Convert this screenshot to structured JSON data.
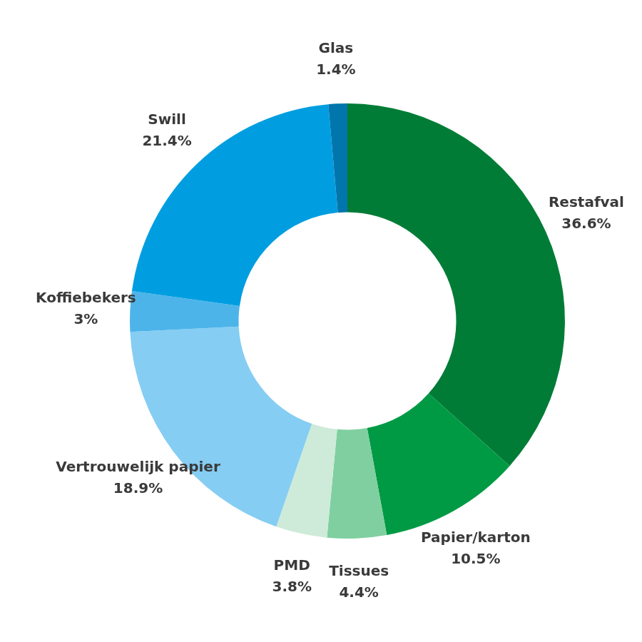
{
  "chart_data": {
    "type": "doughnut",
    "categories": [
      "Restafval",
      "Papier/karton",
      "Tissues",
      "PMD",
      "Vertrouwelijk papier",
      "Koffiebekers",
      "Swill",
      "Glas"
    ],
    "values": [
      36.6,
      10.5,
      4.4,
      3.8,
      18.9,
      3,
      21.4,
      1.4
    ],
    "value_labels": [
      "36.6%",
      "10.5%",
      "4.4%",
      "3.8%",
      "18.9%",
      "3%",
      "21.4%",
      "1.4%"
    ],
    "colors": [
      "#007c36",
      "#009a44",
      "#80cfa0",
      "#cdebd8",
      "#85cdf3",
      "#4db4ea",
      "#009ee0",
      "#0076ad"
    ],
    "data_labels": true
  }
}
